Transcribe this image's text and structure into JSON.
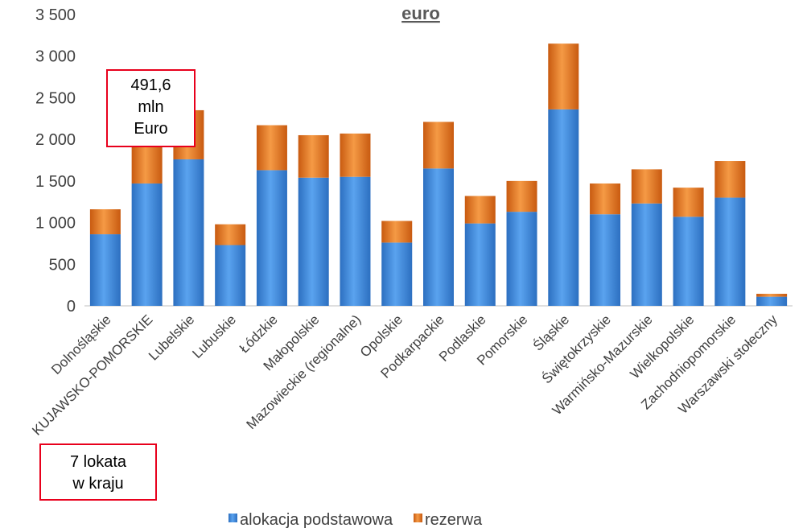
{
  "chart_data": {
    "type": "bar",
    "stacked": true,
    "title": "euro",
    "categories": [
      "Dolnośląskie",
      "KUJAWSKO-POMORSKIE",
      "Lubelskie",
      "Lubuskie",
      "Łódzkie",
      "Małopolskie",
      "Mazowieckie (regionalne)",
      "Opolskie",
      "Podkarpackie",
      "Podlaskie",
      "Pomorskie",
      "Śląskie",
      "Świętokrzyskie",
      "Warmińsko-Mazurskie",
      "Wielkopolskie",
      "Zachodniopomorskie",
      "Warszawski stołeczny"
    ],
    "series": [
      {
        "name": "alokacja podstawowa",
        "color": "#4a90e2",
        "values": [
          860,
          1470,
          1760,
          730,
          1630,
          1540,
          1550,
          760,
          1650,
          990,
          1130,
          2360,
          1100,
          1230,
          1070,
          1300,
          110
        ]
      },
      {
        "name": "rezerwa",
        "color": "#ed7d31",
        "values": [
          300,
          491.6,
          590,
          250,
          540,
          510,
          520,
          260,
          560,
          330,
          370,
          790,
          370,
          410,
          350,
          440,
          35
        ]
      }
    ],
    "yticks": [
      "0",
      "500",
      "1 000",
      "1 500",
      "2 000",
      "2 500",
      "3 000",
      "3 500"
    ],
    "ylim": [
      0,
      3500
    ],
    "grid": false,
    "legend_position": "bottom-left"
  },
  "annotations": {
    "value_box": [
      "491,6",
      "mln",
      "Euro"
    ],
    "rank_box": [
      "7 lokata",
      "w kraju"
    ]
  }
}
